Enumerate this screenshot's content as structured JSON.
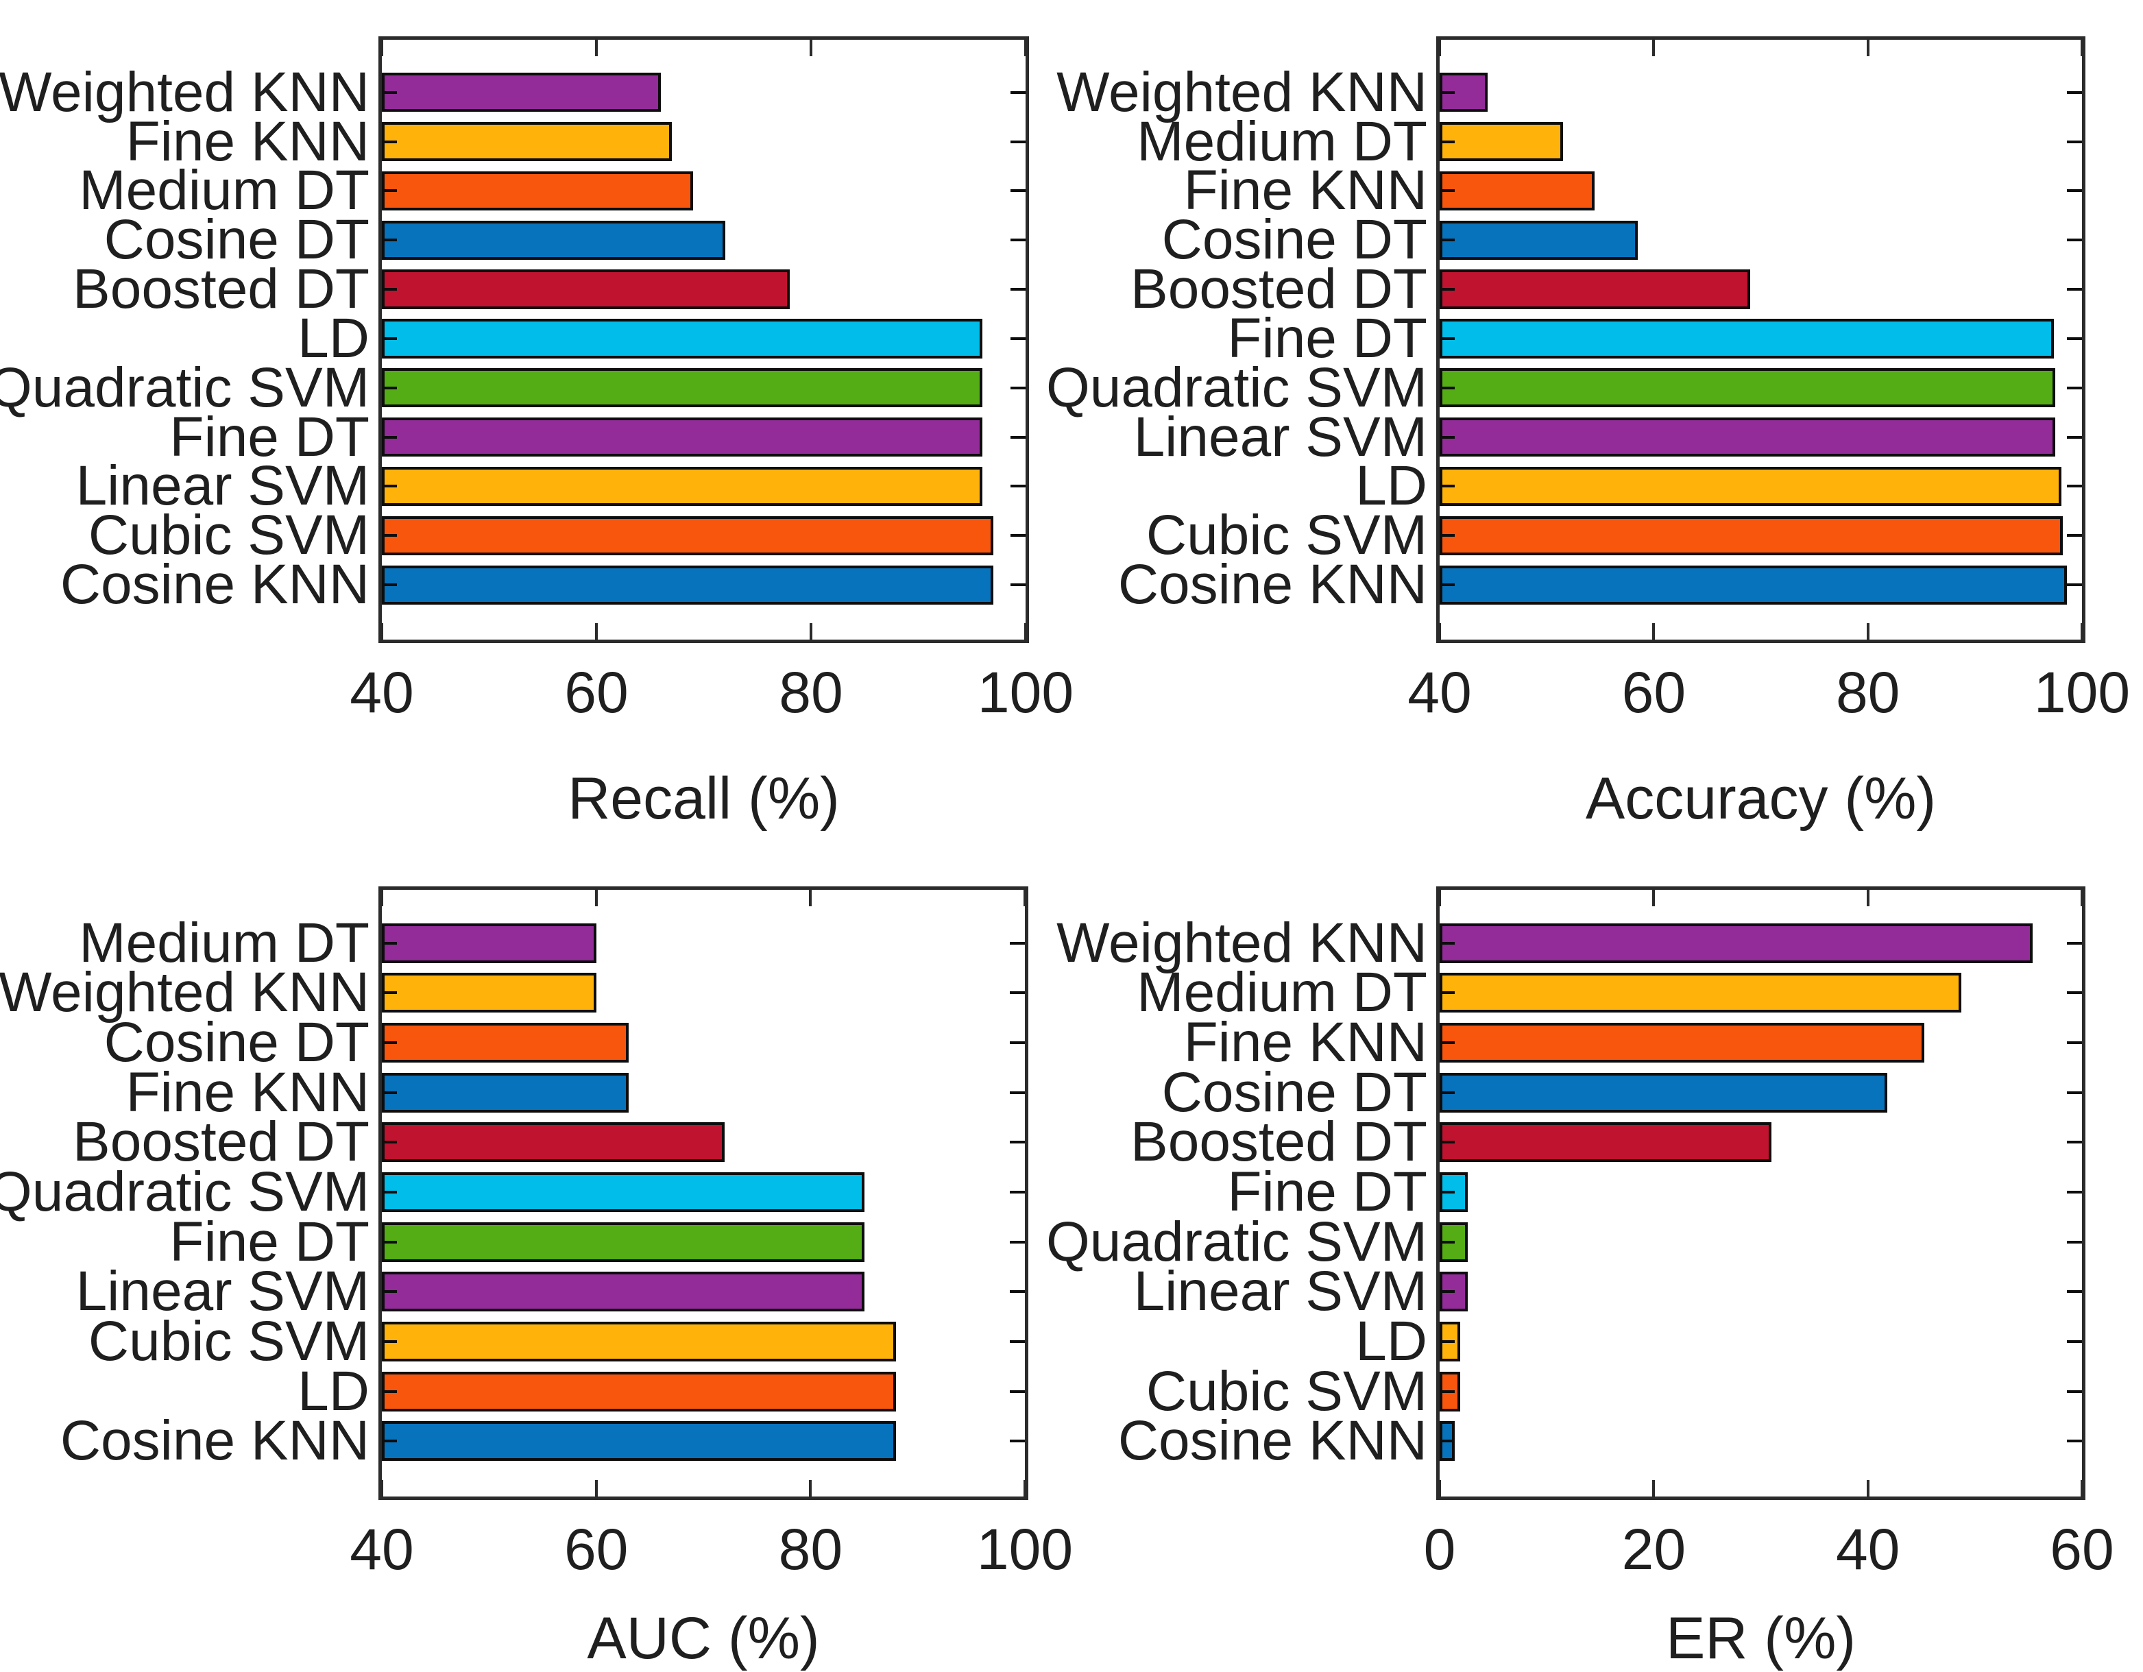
{
  "figure": {
    "background_color": "#ffffff",
    "axis_color": "#2b2b2b",
    "bar_border_color": "#0d0d0d",
    "palette": {
      "blue": "#0873BD",
      "orange": "#F9560D",
      "gold": "#FFB30A",
      "purple": "#932B99",
      "green": "#55AD15",
      "cyan": "#00BEE9",
      "crimson": "#C01330"
    }
  },
  "chart_data": [
    {
      "type": "bar",
      "orientation": "horizontal",
      "name": "recall-chart",
      "xlabel": "Recall (%)",
      "xlim": [
        40,
        100
      ],
      "xticks": [
        "40",
        "60",
        "80",
        "100"
      ],
      "grid": false,
      "legend": false,
      "categories": [
        "Weighted KNN",
        "Fine KNN",
        "Medium DT",
        "Cosine DT",
        "Boosted DT",
        "LD",
        "Quadratic SVM",
        "Fine DT",
        "Linear SVM",
        "Cubic SVM",
        "Cosine KNN"
      ],
      "values": [
        66,
        67,
        69,
        72,
        78,
        96,
        96,
        96,
        96,
        97,
        97
      ],
      "colors": [
        "#932B99",
        "#FFB30A",
        "#F9560D",
        "#0873BD",
        "#C01330",
        "#00BEE9",
        "#55AD15",
        "#932B99",
        "#FFB30A",
        "#F9560D",
        "#0873BD"
      ]
    },
    {
      "type": "bar",
      "orientation": "horizontal",
      "name": "accuracy-chart",
      "xlabel": "Accuracy (%)",
      "xlim": [
        40,
        100
      ],
      "xticks": [
        "40",
        "60",
        "80",
        "100"
      ],
      "grid": false,
      "legend": false,
      "categories": [
        "Weighted KNN",
        "Medium DT",
        "Fine KNN",
        "Cosine DT",
        "Boosted DT",
        "Fine DT",
        "Quadratic SVM",
        "Linear SVM",
        "LD",
        "Cubic SVM",
        "Cosine KNN"
      ],
      "values": [
        44.5,
        51.5,
        54.5,
        58.5,
        69,
        97.4,
        97.5,
        97.5,
        98.1,
        98.2,
        98.6
      ],
      "colors": [
        "#932B99",
        "#FFB30A",
        "#F9560D",
        "#0873BD",
        "#C01330",
        "#00BEE9",
        "#55AD15",
        "#932B99",
        "#FFB30A",
        "#F9560D",
        "#0873BD"
      ]
    },
    {
      "type": "bar",
      "orientation": "horizontal",
      "name": "auc-chart",
      "xlabel": "AUC (%)",
      "xlim": [
        40,
        100
      ],
      "xticks": [
        "40",
        "60",
        "80",
        "100"
      ],
      "grid": false,
      "legend": false,
      "categories": [
        "Medium DT",
        "Weighted KNN",
        "Cosine DT",
        "Fine KNN",
        "Boosted DT",
        "Quadratic SVM",
        "Fine DT",
        "Linear SVM",
        "Cubic SVM",
        "LD",
        "Cosine KNN"
      ],
      "values": [
        60,
        60,
        63,
        63,
        72,
        85,
        85,
        85,
        88,
        88,
        88
      ],
      "colors": [
        "#932B99",
        "#FFB30A",
        "#F9560D",
        "#0873BD",
        "#C01330",
        "#00BEE9",
        "#55AD15",
        "#932B99",
        "#FFB30A",
        "#F9560D",
        "#0873BD"
      ]
    },
    {
      "type": "bar",
      "orientation": "horizontal",
      "name": "er-chart",
      "xlabel": "ER (%)",
      "xlim": [
        0,
        60
      ],
      "xticks": [
        "0",
        "20",
        "40",
        "60"
      ],
      "grid": false,
      "legend": false,
      "categories": [
        "Weighted KNN",
        "Medium DT",
        "Fine KNN",
        "Cosine DT",
        "Boosted DT",
        "Fine DT",
        "Quadratic SVM",
        "Linear SVM",
        "LD",
        "Cubic SVM",
        "Cosine KNN"
      ],
      "values": [
        55.4,
        48.7,
        45.3,
        41.8,
        31,
        2.6,
        2.6,
        2.6,
        1.9,
        1.9,
        1.4
      ],
      "colors": [
        "#932B99",
        "#FFB30A",
        "#F9560D",
        "#0873BD",
        "#C01330",
        "#00BEE9",
        "#55AD15",
        "#932B99",
        "#FFB30A",
        "#F9560D",
        "#0873BD"
      ]
    }
  ]
}
